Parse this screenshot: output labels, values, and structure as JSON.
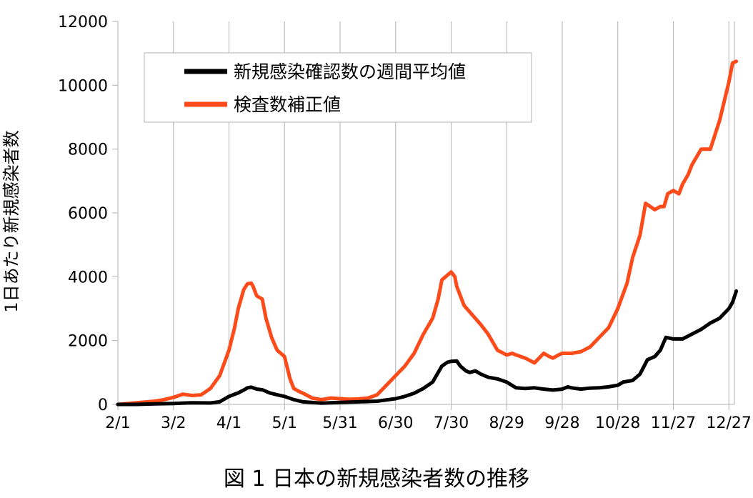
{
  "caption": "図 1 日本の新規感染者数の推移",
  "chart_data": {
    "type": "line",
    "title": "",
    "ylabel": "1日あたり新規感染者数",
    "xlabel": "",
    "ylim": [
      0,
      12000
    ],
    "yticks": [
      0,
      2000,
      4000,
      6000,
      8000,
      10000,
      12000
    ],
    "xlim": [
      0,
      333
    ],
    "xticks": [
      {
        "day": 0,
        "label": "2/1"
      },
      {
        "day": 30,
        "label": "3/2"
      },
      {
        "day": 60,
        "label": "4/1"
      },
      {
        "day": 90,
        "label": "5/1"
      },
      {
        "day": 120,
        "label": "5/31"
      },
      {
        "day": 150,
        "label": "6/30"
      },
      {
        "day": 180,
        "label": "7/30"
      },
      {
        "day": 210,
        "label": "8/29"
      },
      {
        "day": 240,
        "label": "9/28"
      },
      {
        "day": 270,
        "label": "10/28"
      },
      {
        "day": 300,
        "label": "11/27"
      },
      {
        "day": 330,
        "label": "12/27"
      }
    ],
    "grid": "vertical",
    "legend_position": "top-center",
    "series": [
      {
        "name": "新規感染確認数の週間平均値",
        "color": "#000000",
        "x": [
          0,
          10,
          20,
          30,
          40,
          50,
          55,
          60,
          65,
          68,
          70,
          72,
          75,
          78,
          82,
          86,
          90,
          95,
          100,
          110,
          120,
          130,
          140,
          150,
          155,
          160,
          165,
          170,
          175,
          178,
          180,
          183,
          185,
          188,
          190,
          193,
          196,
          200,
          205,
          210,
          215,
          220,
          225,
          230,
          235,
          240,
          243,
          245,
          250,
          255,
          260,
          265,
          270,
          273,
          278,
          282,
          286,
          290,
          293,
          296,
          300,
          305,
          310,
          315,
          320,
          325,
          330,
          332,
          334
        ],
        "y": [
          0,
          0,
          15,
          30,
          50,
          45,
          80,
          250,
          360,
          450,
          520,
          540,
          480,
          460,
          360,
          300,
          250,
          150,
          80,
          40,
          60,
          80,
          100,
          180,
          250,
          350,
          500,
          700,
          1200,
          1320,
          1350,
          1360,
          1200,
          1050,
          1000,
          1050,
          950,
          850,
          800,
          700,
          520,
          500,
          520,
          480,
          450,
          480,
          550,
          520,
          480,
          510,
          520,
          550,
          600,
          700,
          750,
          950,
          1400,
          1500,
          1700,
          2100,
          2050,
          2050,
          2200,
          2350,
          2550,
          2700,
          3000,
          3200,
          3550
        ]
      },
      {
        "name": "検査数補正値",
        "color": "#ff4a1a",
        "x": [
          0,
          10,
          20,
          25,
          30,
          35,
          40,
          45,
          50,
          55,
          60,
          63,
          65,
          68,
          70,
          72,
          73,
          75,
          78,
          80,
          83,
          86,
          90,
          93,
          95,
          98,
          100,
          105,
          110,
          115,
          120,
          125,
          130,
          135,
          140,
          145,
          150,
          155,
          160,
          165,
          170,
          173,
          175,
          178,
          180,
          182,
          183,
          185,
          187,
          190,
          193,
          196,
          200,
          205,
          210,
          213,
          215,
          220,
          225,
          230,
          233,
          235,
          238,
          240,
          245,
          250,
          255,
          260,
          265,
          270,
          275,
          278,
          282,
          285,
          290,
          293,
          295,
          297,
          300,
          303,
          305,
          308,
          310,
          315,
          320,
          325,
          330,
          332,
          334
        ],
        "y": [
          0,
          50,
          100,
          150,
          220,
          320,
          280,
          300,
          500,
          900,
          1700,
          2400,
          3000,
          3600,
          3780,
          3800,
          3700,
          3400,
          3300,
          2700,
          2100,
          1700,
          1500,
          800,
          500,
          400,
          350,
          200,
          150,
          200,
          180,
          160,
          170,
          200,
          300,
          600,
          900,
          1200,
          1600,
          2200,
          2700,
          3300,
          3900,
          4050,
          4150,
          4000,
          3700,
          3400,
          3100,
          2900,
          2700,
          2500,
          2200,
          1700,
          1550,
          1600,
          1550,
          1450,
          1300,
          1600,
          1500,
          1450,
          1550,
          1600,
          1600,
          1650,
          1800,
          2100,
          2400,
          3000,
          3800,
          4600,
          5300,
          6300,
          6100,
          6200,
          6200,
          6600,
          6700,
          6600,
          6900,
          7200,
          7500,
          8000,
          8000,
          8900,
          10100,
          10700,
          10750
        ]
      }
    ]
  }
}
